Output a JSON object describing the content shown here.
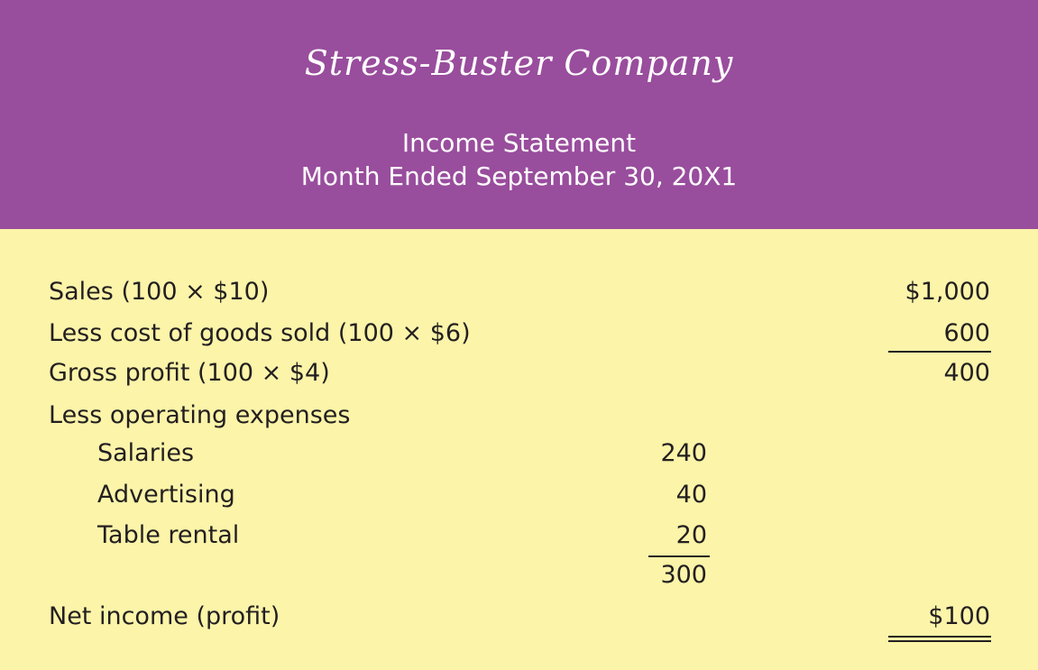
{
  "header": {
    "company_name": "Stress-Buster Company",
    "statement_title": "Income Statement",
    "period": "Month Ended September 30, 20X1"
  },
  "statement": {
    "sales": {
      "label": "Sales (100 × $10)",
      "amount": "$1,000"
    },
    "cogs": {
      "label": "Less cost of goods sold (100 × $6)",
      "amount": "600"
    },
    "gross_profit": {
      "label": "Gross profit (100 × $4)",
      "amount": "400"
    },
    "operating_expenses": {
      "label": "Less operating expenses",
      "items": [
        {
          "label": "Salaries",
          "amount": "240"
        },
        {
          "label": "Advertising",
          "amount": "40"
        },
        {
          "label": "Table rental",
          "amount": "20"
        }
      ],
      "total": "300"
    },
    "net_income": {
      "label": "Net income (profit)",
      "amount": "$100"
    }
  },
  "colors": {
    "header_background": "#994d9d",
    "body_background": "#fbf4a9",
    "text": "#231f20"
  }
}
